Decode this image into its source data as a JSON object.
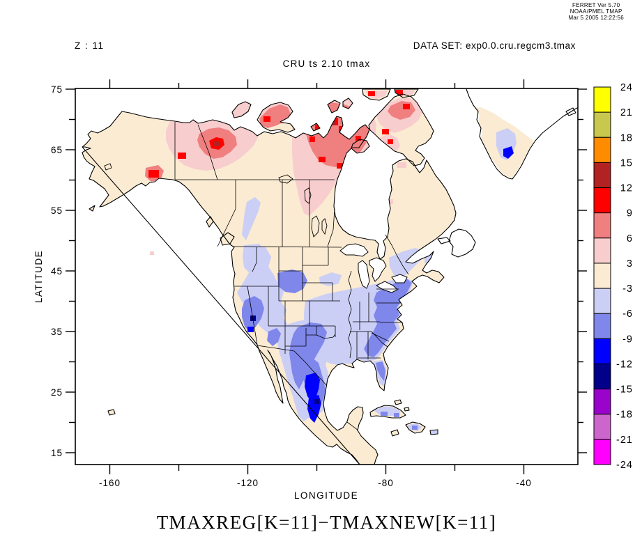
{
  "stamp": {
    "line1": "FERRET Ver 5.70",
    "line2": "NOAA/PMEL TMAP",
    "line3": "Mar 5 2005 12:22:56"
  },
  "header": {
    "z_label": "Z : 11",
    "dataset": "DATA SET: exp0.0.cru.regcm3.tmax",
    "title": "CRU ts 2.10 tmax"
  },
  "footer": {
    "formula": "TMAXREG[K=11]−TMAXNEW[K=11]"
  },
  "axes": {
    "x_title": "LONGITUDE",
    "y_title": "LATITUDE",
    "x_major": [
      {
        "label": "-160",
        "lon": -160
      },
      {
        "label": "-120",
        "lon": -120
      },
      {
        "label": "-80",
        "lon": -80
      },
      {
        "label": "-40",
        "lon": -40
      }
    ],
    "x_minor_lons": [
      -140,
      -100,
      -60
    ],
    "y_major": [
      {
        "label": "75",
        "lat": 75
      },
      {
        "label": "65",
        "lat": 65
      },
      {
        "label": "55",
        "lat": 55
      },
      {
        "label": "45",
        "lat": 45
      },
      {
        "label": "35",
        "lat": 35
      },
      {
        "label": "25",
        "lat": 25
      },
      {
        "label": "15",
        "lat": 15
      }
    ],
    "y_minor_lats": [
      70,
      60,
      50,
      40,
      30,
      20
    ]
  },
  "colorbar": {
    "labels_top_to_bottom": [
      "24",
      "21",
      "18",
      "15",
      "12",
      "9",
      "6",
      "3",
      "-3",
      "-6",
      "-9",
      "-12",
      "-15",
      "-18",
      "-21",
      "-24"
    ],
    "colors_top_to_bottom": [
      "#FFFF00",
      "#C8C84E",
      "#FF8C00",
      "#B22222",
      "#FF0000",
      "#F08080",
      "#F8CDCD",
      "#FAEBD2",
      "#CBCEF5",
      "#7F87EB",
      "#0000FF",
      "#00008B",
      "#9903CC",
      "#CC66CC",
      "#FF00FF"
    ]
  },
  "chart_data": {
    "type": "heatmap",
    "subtype": "filled-contour geographic map (Ferret plot)",
    "title": "CRU ts 2.10 tmax",
    "variable": "TMAXREG[K=11]-TMAXNEW[K=11]",
    "dataset": "exp0.0.cru.regcm3.tmax",
    "z_level": 11,
    "xlabel": "LONGITUDE",
    "ylabel": "LATITUDE",
    "xlim": [
      -170,
      -24
    ],
    "ylim": [
      13,
      75
    ],
    "x_ticks": [
      -160,
      -140,
      -120,
      -100,
      -80,
      -60,
      -40
    ],
    "y_ticks": [
      15,
      20,
      25,
      30,
      35,
      40,
      45,
      50,
      55,
      60,
      65,
      70,
      75
    ],
    "contour_levels": [
      -24,
      -21,
      -18,
      -15,
      -12,
      -9,
      -6,
      -3,
      3,
      6,
      9,
      12,
      15,
      18,
      21,
      24
    ],
    "legend_position": "right colorbar",
    "grid": false,
    "regions": [
      {
        "area": "Alaska interior and west coast",
        "value_range": "-3 to 3"
      },
      {
        "area": "Yukon / western NWT",
        "value_range": "3 to 9, core 9 to 12 near lon -125 lat 66"
      },
      {
        "area": "South-central Alaska (Anchorage spot)",
        "value_range": "9 to 12"
      },
      {
        "area": "Kivalliq, NW of Hudson Bay",
        "value_range": "6 to 9 with 9-12 specks"
      },
      {
        "area": "Arctic islands (Banks, Victoria, Baffin)",
        "value_range": "3 to 9, small 9-12 spots"
      },
      {
        "area": "Hudson Bay, Great Lakes, oceans, Greenland interior",
        "value_range": "no data (white)"
      },
      {
        "area": "Canadian prairies, Quebec, Labrador",
        "value_range": "-3 to 3"
      },
      {
        "area": "Southwest Greenland",
        "value_range": "-3 to 3 with -6 to -9 patch"
      },
      {
        "area": "Northern US plains",
        "value_range": "-3 to 3"
      },
      {
        "area": "Rockies, Great Basin, central US",
        "value_range": "-3 to -6"
      },
      {
        "area": "Nevada blob",
        "value_range": "-6 to -9 with -12 to -15 speck"
      },
      {
        "area": "Appalachians / Southeast US",
        "value_range": "-6 to -9"
      },
      {
        "area": "Texas and northern Mexico",
        "value_range": "-6 to -9, cores -9 to -12"
      },
      {
        "area": "Interior Mexico",
        "value_range": "-9 to -12 with -12 to -15 speck"
      },
      {
        "area": "Cuba / Hispaniola / Puerto Rico",
        "value_range": "-3 to -6"
      }
    ]
  }
}
